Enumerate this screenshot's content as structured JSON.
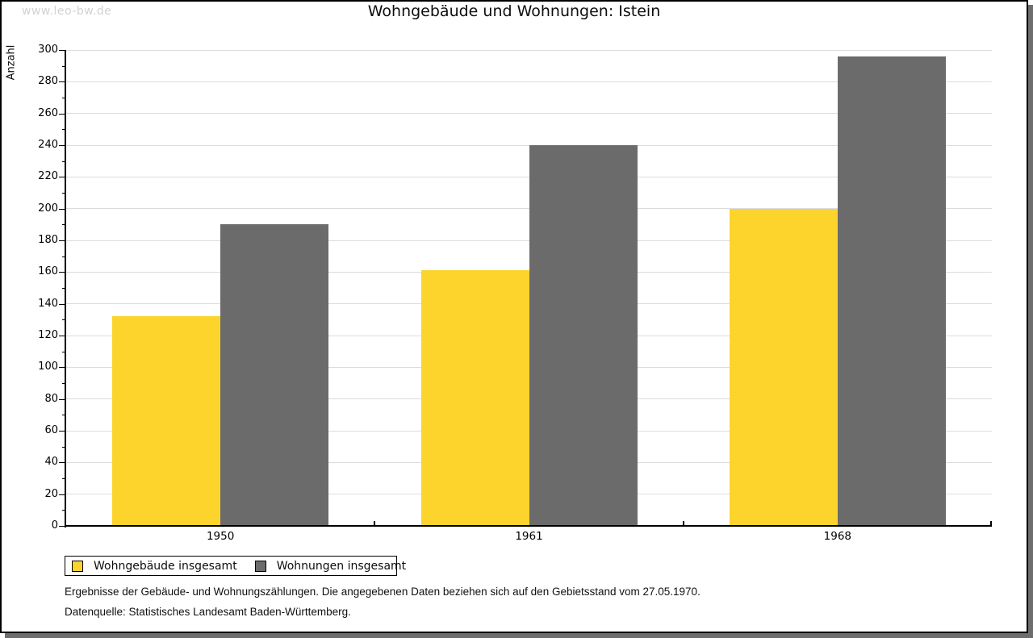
{
  "watermark": "www.leo-bw.de",
  "title": "Wohngebäude und Wohnungen: Istein",
  "chart_data": {
    "type": "bar",
    "categories": [
      "1950",
      "1961",
      "1968"
    ],
    "series": [
      {
        "name": "Wohngebäude insgesamt",
        "color": "#fcd42c",
        "values": [
          132,
          161,
          200
        ]
      },
      {
        "name": "Wohnungen insgesamt",
        "color": "#6b6b6b",
        "values": [
          190,
          240,
          296
        ]
      }
    ],
    "title": "Wohngebäude und Wohnungen: Istein",
    "xlabel": "",
    "ylabel": "Anzahl",
    "ylim": [
      0,
      300
    ],
    "ytick_step": 20,
    "yminor_step": 10,
    "yticks": [
      0,
      20,
      40,
      60,
      80,
      100,
      120,
      140,
      160,
      180,
      200,
      220,
      240,
      260,
      280,
      300
    ],
    "grid": true,
    "legend_position": "bottom-left",
    "gridline_color": "#dcdcdc",
    "axis_color": "#000000"
  },
  "footer": {
    "line1": "Ergebnisse der Gebäude- und Wohnungszählungen. Die angegebenen Daten beziehen sich auf den Gebietsstand vom 27.05.1970.",
    "line2": "Datenquelle: Statistisches Landesamt Baden-Württemberg."
  }
}
